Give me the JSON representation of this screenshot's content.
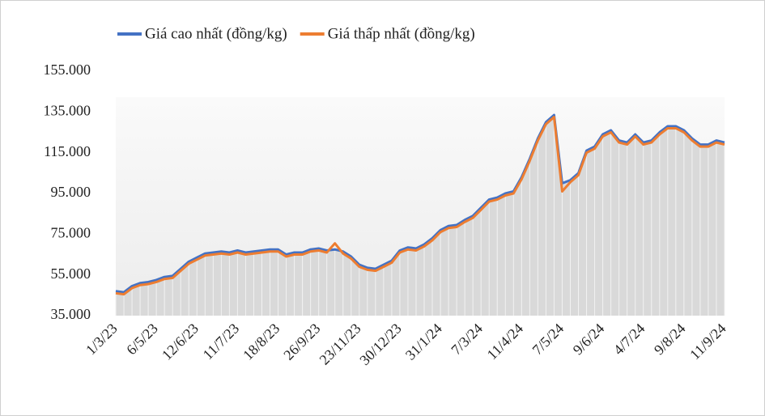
{
  "chart_data": {
    "type": "line",
    "categories": [
      "1/3/23",
      null,
      null,
      null,
      null,
      "6/5/23",
      null,
      null,
      null,
      null,
      "12/6/23",
      null,
      null,
      null,
      null,
      "11/7/23",
      null,
      null,
      null,
      null,
      "18/8/23",
      null,
      null,
      null,
      null,
      "26/9/23",
      null,
      null,
      null,
      null,
      "23/11/23",
      null,
      null,
      null,
      null,
      "30/12/23",
      null,
      null,
      null,
      null,
      "31/1/24",
      null,
      null,
      null,
      null,
      "7/3/24",
      null,
      null,
      null,
      null,
      "11/4/24",
      null,
      null,
      null,
      null,
      "7/5/24",
      null,
      null,
      null,
      null,
      "9/6/24",
      null,
      null,
      null,
      null,
      "4/7/24",
      null,
      null,
      null,
      null,
      "9/8/24",
      null,
      null,
      null,
      null,
      "11/9/24"
    ],
    "series": [
      {
        "name": "Giá cao nhất (đồng/kg)",
        "color": "#4472c4",
        "values": [
          47000,
          46500,
          49500,
          51000,
          51500,
          52500,
          54000,
          54500,
          58000,
          61500,
          63500,
          65500,
          66000,
          66500,
          66000,
          67000,
          66000,
          66500,
          67000,
          67500,
          67500,
          65000,
          66000,
          66000,
          67500,
          68000,
          67000,
          67500,
          66500,
          64000,
          60000,
          58500,
          58000,
          60000,
          62000,
          67000,
          68500,
          68000,
          70000,
          73000,
          77000,
          79000,
          79500,
          82000,
          84000,
          88000,
          92000,
          93000,
          95000,
          96000,
          103000,
          112000,
          122000,
          130000,
          133500,
          100000,
          101500,
          105000,
          116000,
          118000,
          124000,
          126000,
          121000,
          120000,
          124000,
          120000,
          121000,
          125000,
          128000,
          128000,
          126000,
          122000,
          119000,
          119000,
          121000,
          120000
        ]
      },
      {
        "name": "Giá thấp nhất (đồng/kg)",
        "color": "#ed7d31",
        "values": [
          46000,
          45500,
          48500,
          50000,
          50500,
          51500,
          53000,
          53500,
          57000,
          60500,
          62500,
          64500,
          65000,
          65500,
          65000,
          66000,
          65000,
          65500,
          66000,
          66500,
          66500,
          64000,
          65000,
          65000,
          66500,
          67000,
          66000,
          70500,
          65500,
          63000,
          59000,
          57500,
          57000,
          59000,
          61000,
          66000,
          67500,
          67000,
          69000,
          72000,
          76000,
          78000,
          78500,
          81000,
          83000,
          87000,
          91000,
          92000,
          94000,
          95000,
          102000,
          111000,
          121000,
          129000,
          132500,
          96000,
          100500,
          104000,
          115000,
          117000,
          123000,
          125000,
          120000,
          119000,
          123000,
          119000,
          120000,
          124000,
          127000,
          127000,
          125000,
          121000,
          118000,
          118000,
          120000,
          119000
        ]
      }
    ],
    "ylim": [
      35000,
      155000
    ],
    "yticks": [
      {
        "value": 35000,
        "label": "35.000"
      },
      {
        "value": 55000,
        "label": "55.000"
      },
      {
        "value": 75000,
        "label": "75.000"
      },
      {
        "value": 95000,
        "label": "95.000"
      },
      {
        "value": 115000,
        "label": "115.000"
      },
      {
        "value": 135000,
        "label": "135.000"
      },
      {
        "value": 155000,
        "label": "155.000"
      }
    ],
    "legend": "top"
  }
}
